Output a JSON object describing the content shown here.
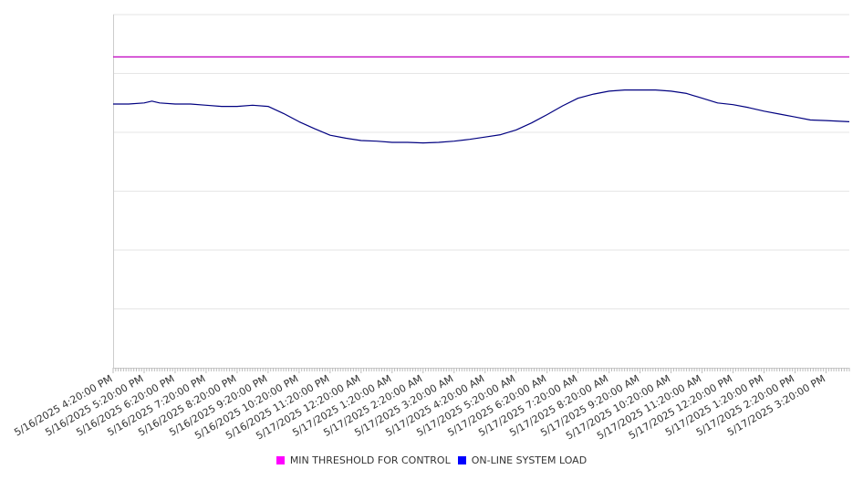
{
  "chart_data": {
    "type": "line",
    "title": "",
    "xlabel": "",
    "ylabel": "",
    "grid": true,
    "legend_position": "bottom",
    "x_tick_labels": [
      "5/16/2025 4:20:00 PM",
      "5/16/2025 5:20:00 PM",
      "5/16/2025 6:20:00 PM",
      "5/16/2025 7:20:00 PM",
      "5/16/2025 8:20:00 PM",
      "5/16/2025 9:20:00 PM",
      "5/16/2025 10:20:00 PM",
      "5/16/2025 11:20:00 PM",
      "5/17/2025 12:20:00 AM",
      "5/17/2025 1:20:00 AM",
      "5/17/2025 2:20:00 AM",
      "5/17/2025 3:20:00 AM",
      "5/17/2025 4:20:00 AM",
      "5/17/2025 5:20:00 AM",
      "5/17/2025 6:20:00 AM",
      "5/17/2025 7:20:00 AM",
      "5/17/2025 8:20:00 AM",
      "5/17/2025 9:20:00 AM",
      "5/17/2025 10:20:00 AM",
      "5/17/2025 11:20:00 AM",
      "5/17/2025 12:20:00 PM",
      "5/17/2025 1:20:00 PM",
      "5/17/2025 2:20:00 PM",
      "5/17/2025 3:20:00 PM"
    ],
    "ylim": [
      0,
      6
    ],
    "series": [
      {
        "name": "MIN THRESHOLD FOR CONTROL",
        "color": "#ff00ff",
        "line_color": "#c000c0",
        "x": [
          0,
          23.75
        ],
        "values": [
          5.28,
          5.28
        ]
      },
      {
        "name": "ON-LINE SYSTEM LOAD",
        "color": "#0000ff",
        "line_color": "#000080",
        "x": [
          0,
          0.5,
          1,
          1.25,
          1.5,
          2,
          2.5,
          3,
          3.5,
          4,
          4.5,
          5,
          5.5,
          6,
          6.5,
          7,
          7.5,
          8,
          8.5,
          9,
          9.5,
          10,
          10.5,
          11,
          11.5,
          12,
          12.5,
          13,
          13.5,
          14,
          14.5,
          15,
          15.5,
          16,
          16.5,
          17,
          17.5,
          18,
          18.5,
          19,
          19.5,
          20,
          20.5,
          21,
          21.5,
          22,
          22.5,
          23,
          23.75
        ],
        "values": [
          4.48,
          4.48,
          4.5,
          4.53,
          4.5,
          4.48,
          4.48,
          4.46,
          4.44,
          4.44,
          4.46,
          4.44,
          4.32,
          4.18,
          4.06,
          3.95,
          3.9,
          3.86,
          3.85,
          3.83,
          3.83,
          3.82,
          3.83,
          3.85,
          3.88,
          3.92,
          3.96,
          4.04,
          4.16,
          4.3,
          4.45,
          4.58,
          4.65,
          4.7,
          4.72,
          4.72,
          4.72,
          4.7,
          4.66,
          4.58,
          4.5,
          4.47,
          4.42,
          4.36,
          4.31,
          4.26,
          4.21,
          4.2,
          4.18
        ]
      }
    ]
  }
}
